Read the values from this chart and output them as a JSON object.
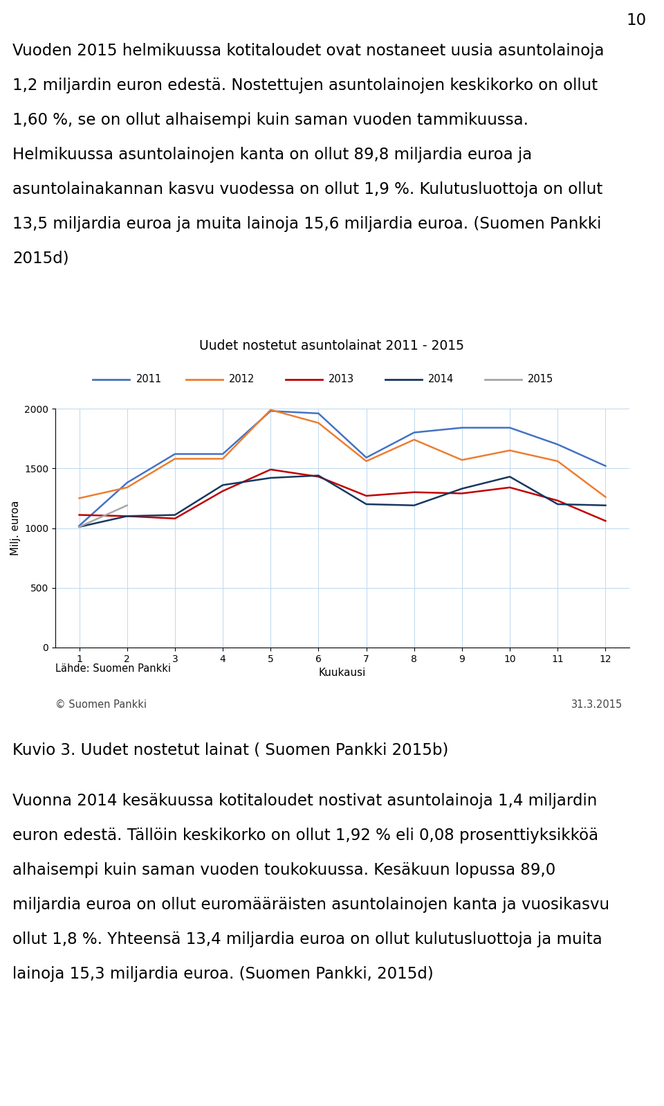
{
  "page_number": "10",
  "top_text_lines": [
    "Vuoden 2015 helmikuussa kotitaloudet ovat nostaneet uusia asuntolainoja",
    "1,2 miljardin euron edestä. Nostettujen asuntolainojen keskikorko on ollut",
    "1,60 %, se on ollut alhaisempi kuin saman vuoden tammikuussa.",
    "Helmikuussa asuntolainojen kanta on ollut 89,8 miljardia euroa ja",
    "asuntolainakannan kasvu vuodessa on ollut 1,9 %. Kulutusluottoja on ollut",
    "13,5 miljardia euroa ja muita lainoja 15,6 miljardia euroa. (Suomen Pankki",
    "2015d)"
  ],
  "chart_title": "Uudet nostetut asuntolainat 2011 - 2015",
  "xlabel": "Kuukausi",
  "ylabel": "Milj. euroa",
  "source_label": "Lähde: Suomen Pankki",
  "copyright_label": "© Suomen Pankki",
  "date_label": "31.3.2015",
  "ylim": [
    0,
    2000
  ],
  "yticks": [
    0,
    500,
    1000,
    1500,
    2000
  ],
  "xticks": [
    1,
    2,
    3,
    4,
    5,
    6,
    7,
    8,
    9,
    10,
    11,
    12
  ],
  "series": {
    "2011": {
      "color": "#4472C4",
      "linewidth": 1.8,
      "values": [
        1020,
        1380,
        1620,
        1620,
        1980,
        1960,
        1590,
        1800,
        1840,
        1840,
        1700,
        1520
      ]
    },
    "2012": {
      "color": "#ED7D31",
      "linewidth": 1.8,
      "values": [
        1250,
        1340,
        1580,
        1580,
        1990,
        1880,
        1560,
        1740,
        1570,
        1650,
        1560,
        1260
      ]
    },
    "2013": {
      "color": "#C00000",
      "linewidth": 1.8,
      "values": [
        1110,
        1100,
        1080,
        1310,
        1490,
        1430,
        1270,
        1300,
        1290,
        1340,
        1230,
        1060
      ]
    },
    "2014": {
      "color": "#17375E",
      "linewidth": 1.8,
      "values": [
        1010,
        1100,
        1110,
        1360,
        1420,
        1440,
        1200,
        1190,
        1330,
        1430,
        1200,
        1190
      ]
    },
    "2015": {
      "color": "#A6A6A6",
      "linewidth": 1.8,
      "values": [
        1010,
        1190,
        null,
        null,
        null,
        null,
        null,
        null,
        null,
        null,
        null,
        null
      ]
    }
  },
  "legend_order": [
    "2011",
    "2012",
    "2013",
    "2014",
    "2015"
  ],
  "kuvio_line": "Kuvio 3. Uudet nostetut lainat ( Suomen Pankki 2015b)",
  "bottom_text_lines": [
    "Vuonna 2014 kesäkuussa kotitaloudet nostivat asuntolainoja 1,4 miljardin",
    "euron edestä. Tällöin keskikorko on ollut 1,92 % eli 0,08 prosenttiyksikköä",
    "alhaisempi kuin saman vuoden toukokuussa. Kesäkuun lopussa 89,0",
    "miljardia euroa on ollut euromääräisten asuntolainojen kanta ja vuosikasvu",
    "ollut 1,8 %. Yhteensä 13,4 miljardia euroa on ollut kulutusluottoja ja muita",
    "lainoja 15,3 miljardia euroa. (Suomen Pankki, 2015d)"
  ],
  "background_color": "#FFFFFF",
  "grid_color": "#BDD7EE",
  "text_fontsize": 16.5,
  "small_fontsize": 10.5,
  "title_fontsize": 13.5,
  "legend_fontsize": 10.5,
  "axis_fontsize": 11
}
